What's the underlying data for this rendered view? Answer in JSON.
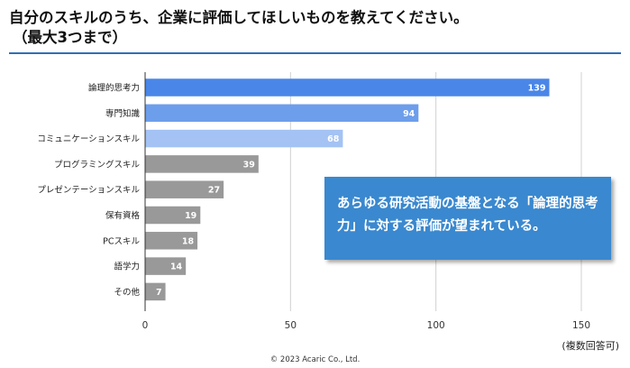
{
  "title": {
    "line1": "自分のスキルのうち、企業に評価してほしいものを教えてください。",
    "line2": "（最大3つまで）"
  },
  "callout": "あらゆる研究活動の基盤となる「論理的思考力」に対する評価が望まれている。",
  "note": "(複数回答可)",
  "copyright": "© 2023 Acaric Co., Ltd.",
  "colors": {
    "bar_dark": "#4a86e8",
    "bar_mid": "#6d9eeb",
    "bar_light": "#a4c2f4",
    "bar_gray": "#999999",
    "rule": "#2f6fb8",
    "callout": "#3a88cf"
  },
  "chart_data": {
    "type": "bar",
    "orientation": "horizontal",
    "categories": [
      "論理的思考力",
      "専門知識",
      "コミュニケーションスキル",
      "プログラミングスキル",
      "プレゼンテーションスキル",
      "保有資格",
      "PCスキル",
      "語学力",
      "その他"
    ],
    "values": [
      139,
      94,
      68,
      39,
      27,
      19,
      18,
      14,
      7
    ],
    "bar_colors": [
      "#4a86e8",
      "#6d9eeb",
      "#a4c2f4",
      "#999999",
      "#999999",
      "#999999",
      "#999999",
      "#999999",
      "#999999"
    ],
    "xticks": [
      0,
      50,
      100,
      150
    ],
    "xlim": [
      0,
      150
    ],
    "grid": true,
    "data_labels": true
  }
}
